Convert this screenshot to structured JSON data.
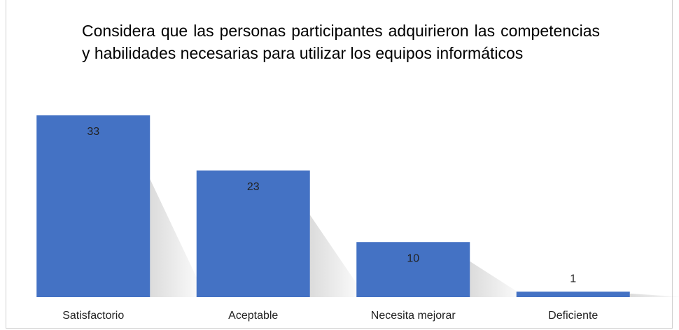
{
  "chart_data": {
    "type": "bar",
    "title": "Considera que las personas participantes adquirieron las competencias y habilidades necesarias para utilizar los equipos informáticos",
    "categories": [
      "Satisfactorio",
      "Aceptable",
      "Necesita mejorar",
      "Deficiente"
    ],
    "values": [
      33,
      23,
      10,
      1
    ],
    "color": "#4472c4"
  }
}
